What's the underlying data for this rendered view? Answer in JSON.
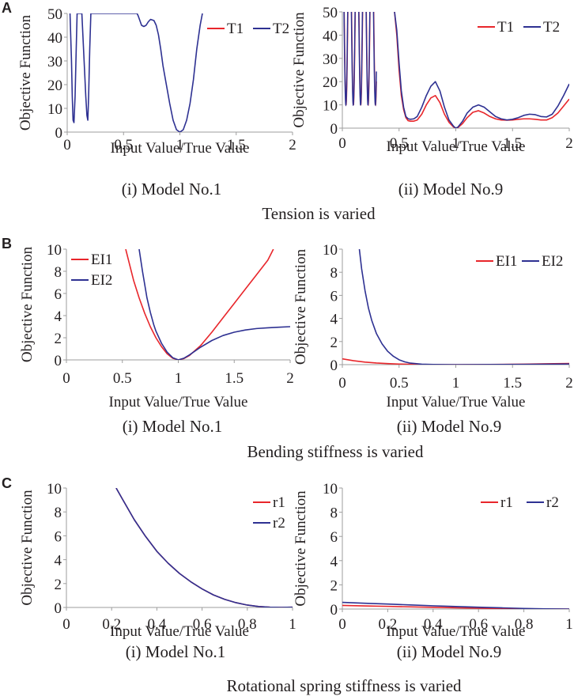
{
  "colors": {
    "red": "#e8262b",
    "blue": "#2e3192",
    "axis": "#9e9e9e",
    "text": "#231f20"
  },
  "panels": [
    {
      "letter": "A",
      "caption": "Tension is varied",
      "subcaptions": [
        "(i) Model No.1",
        "(ii) Model No.9"
      ]
    },
    {
      "letter": "B",
      "caption": "Bending stiffness is varied",
      "subcaptions": [
        "(i) Model No.1",
        "(ii) Model No.9"
      ]
    },
    {
      "letter": "C",
      "caption": "Rotational spring stiffness is varied",
      "subcaptions": [
        "(i) Model No.1",
        "(ii) Model No.9"
      ]
    }
  ],
  "chart_data": [
    {
      "id": "A-i",
      "type": "line",
      "title": "(i) Model No.1",
      "xlabel": "Input Value/True Value",
      "ylabel": "Objective Function",
      "xlim": [
        0,
        2
      ],
      "ylim": [
        0,
        50
      ],
      "xticks": [
        "0",
        "0.5",
        "1",
        "1.5",
        "2"
      ],
      "yticks": [
        "0",
        "10",
        "20",
        "30",
        "40",
        "50"
      ],
      "legend": "top-right",
      "series": [
        {
          "name": "T1",
          "color": "red",
          "x": [],
          "y": []
        },
        {
          "name": "T2",
          "color": "blue",
          "x": [
            0.025,
            0.038,
            0.045,
            0.052,
            0.06,
            0.07,
            0.08,
            0.088,
            0.13,
            0.15,
            0.165,
            0.175,
            0.183,
            0.19,
            0.2,
            0.21,
            0.62,
            0.63,
            0.66,
            0.68,
            0.7,
            0.72,
            0.74,
            0.77,
            0.79,
            0.81,
            0.83,
            0.85,
            0.88,
            0.91,
            0.94,
            0.97,
            1.0,
            1.03,
            1.06,
            1.09,
            1.12,
            1.15,
            1.18,
            1.2
          ],
          "y": [
            50,
            30,
            15,
            5,
            4,
            15,
            35,
            50,
            50,
            30,
            15,
            7,
            5,
            15,
            35,
            50,
            50,
            49,
            45,
            44.5,
            45,
            46.5,
            47.5,
            47,
            45,
            41,
            35,
            28,
            20,
            12,
            5,
            1,
            0,
            1,
            5,
            12,
            22,
            35,
            45,
            50
          ]
        }
      ]
    },
    {
      "id": "A-ii",
      "type": "line",
      "title": "(ii) Model No.9",
      "xlabel": "Input Value/True Value",
      "ylabel": "Objective Function",
      "xlim": [
        0,
        2
      ],
      "ylim": [
        0,
        50
      ],
      "xticks": [
        "0",
        "0.5",
        "1",
        "1.5",
        "2"
      ],
      "yticks": [
        "0",
        "10",
        "20",
        "30",
        "40",
        "50"
      ],
      "legend": "top-right",
      "series": [
        {
          "name": "T1",
          "color": "red",
          "x": [
            0.46,
            0.48,
            0.5,
            0.52,
            0.54,
            0.56,
            0.58,
            0.6,
            0.63,
            0.66,
            0.7,
            0.74,
            0.78,
            0.82,
            0.86,
            0.9,
            0.94,
            0.98,
            1.0,
            1.02,
            1.06,
            1.1,
            1.15,
            1.2,
            1.25,
            1.3,
            1.35,
            1.4,
            1.45,
            1.5,
            1.55,
            1.6,
            1.65,
            1.7,
            1.75,
            1.8,
            1.85,
            1.9,
            1.95,
            2.0
          ],
          "y": [
            50,
            40,
            25,
            14,
            8,
            4.5,
            3.2,
            3,
            3,
            3.5,
            6,
            10,
            13,
            14,
            11,
            6,
            2.5,
            0.5,
            0,
            0.3,
            2,
            4.5,
            6.8,
            7.5,
            6.5,
            5,
            4,
            3.5,
            3.4,
            3.5,
            3.8,
            4,
            4,
            3.8,
            3.5,
            3.5,
            4.5,
            6.5,
            9.5,
            12.5
          ]
        },
        {
          "name": "T2",
          "color": "blue",
          "x": [
            0.46,
            0.48,
            0.5,
            0.52,
            0.54,
            0.56,
            0.58,
            0.6,
            0.63,
            0.66,
            0.7,
            0.74,
            0.78,
            0.82,
            0.86,
            0.9,
            0.94,
            0.98,
            1.0,
            1.02,
            1.06,
            1.1,
            1.15,
            1.2,
            1.25,
            1.3,
            1.35,
            1.4,
            1.45,
            1.5,
            1.55,
            1.6,
            1.65,
            1.7,
            1.75,
            1.8,
            1.85,
            1.9,
            1.95,
            2.0
          ],
          "y": [
            50,
            42,
            28,
            16,
            9,
            5,
            4,
            3.8,
            4,
            5,
            9,
            14,
            18,
            20,
            16,
            9,
            3.5,
            0.8,
            0,
            0.5,
            3,
            6.5,
            9,
            10,
            9,
            7,
            5,
            4,
            3.5,
            3.8,
            4.5,
            5.5,
            6,
            5.8,
            5,
            4.8,
            6,
            9.5,
            14,
            19
          ]
        }
      ],
      "note": "Dense oscillations near x = 0 to 0.3 exceed the axis range"
    },
    {
      "id": "B-i",
      "type": "line",
      "title": "(i) Model No.1",
      "xlabel": "Input Value/True Value",
      "ylabel": "Objective Function",
      "xlim": [
        0,
        2
      ],
      "ylim": [
        0,
        10
      ],
      "xticks": [
        "0",
        "0.5",
        "1",
        "1.5",
        "2"
      ],
      "yticks": [
        "0",
        "2",
        "4",
        "6",
        "8",
        "10"
      ],
      "legend": "top-left",
      "series": [
        {
          "name": "EI1",
          "color": "red",
          "x": [
            0.53,
            0.56,
            0.6,
            0.65,
            0.7,
            0.75,
            0.8,
            0.85,
            0.9,
            0.95,
            1.0,
            1.05,
            1.1,
            1.2,
            1.3,
            1.4,
            1.5,
            1.6,
            1.7,
            1.8,
            1.85
          ],
          "y": [
            10,
            8.8,
            7.2,
            5.6,
            4.2,
            3.0,
            2.0,
            1.2,
            0.55,
            0.15,
            0,
            0.12,
            0.4,
            1.3,
            2.5,
            3.8,
            5.1,
            6.4,
            7.7,
            9.0,
            10
          ]
        },
        {
          "name": "EI2",
          "color": "blue",
          "x": [
            0.65,
            0.68,
            0.7,
            0.72,
            0.75,
            0.78,
            0.8,
            0.85,
            0.9,
            0.95,
            1.0,
            1.05,
            1.1,
            1.2,
            1.3,
            1.4,
            1.5,
            1.6,
            1.7,
            1.8,
            1.9,
            2.0
          ],
          "y": [
            10,
            8.0,
            6.8,
            5.6,
            4.3,
            3.2,
            2.6,
            1.5,
            0.7,
            0.2,
            0,
            0.15,
            0.45,
            1.15,
            1.75,
            2.2,
            2.5,
            2.7,
            2.83,
            2.9,
            2.95,
            3.0
          ]
        }
      ]
    },
    {
      "id": "B-ii",
      "type": "line",
      "title": "(ii) Model No.9",
      "xlabel": "Input Value/True Value",
      "ylabel": "Objective Function",
      "xlim": [
        0,
        2
      ],
      "ylim": [
        0,
        10
      ],
      "xticks": [
        "0",
        "0.5",
        "1",
        "1.5",
        "2"
      ],
      "yticks": [
        "0",
        "2",
        "4",
        "6",
        "8",
        "10"
      ],
      "legend": "top-right",
      "series": [
        {
          "name": "EI1",
          "color": "red",
          "x": [
            0.0,
            0.1,
            0.2,
            0.3,
            0.4,
            0.5,
            0.6,
            0.7,
            0.8,
            0.9,
            1.0,
            1.2,
            1.4,
            1.6,
            1.8,
            2.0
          ],
          "y": [
            0.5,
            0.34,
            0.22,
            0.14,
            0.09,
            0.05,
            0.03,
            0.015,
            0.005,
            0.001,
            0,
            0.005,
            0.02,
            0.04,
            0.07,
            0.1
          ]
        },
        {
          "name": "EI2",
          "color": "blue",
          "x": [
            0.15,
            0.17,
            0.2,
            0.23,
            0.26,
            0.3,
            0.35,
            0.4,
            0.45,
            0.5,
            0.55,
            0.6,
            0.7,
            0.8,
            0.9,
            1.0,
            1.2,
            1.4,
            1.6,
            1.8,
            2.0
          ],
          "y": [
            10,
            8.3,
            6.4,
            4.9,
            3.8,
            2.7,
            1.8,
            1.15,
            0.72,
            0.42,
            0.24,
            0.13,
            0.04,
            0.01,
            0.002,
            0,
            0.004,
            0.012,
            0.025,
            0.04,
            0.06
          ]
        }
      ]
    },
    {
      "id": "C-i",
      "type": "line",
      "title": "(i) Model No.1",
      "xlabel": "Input Value/True Value",
      "ylabel": "Objective Function",
      "xlim": [
        0,
        1
      ],
      "ylim": [
        0,
        10
      ],
      "xticks": [
        "0",
        "0.2",
        "0.4",
        "0.6",
        "0.8",
        "1"
      ],
      "yticks": [
        "0",
        "2",
        "4",
        "6",
        "8",
        "10"
      ],
      "legend": "top-right",
      "series": [
        {
          "name": "r1",
          "color": "red",
          "x": [
            0.22,
            0.25,
            0.3,
            0.35,
            0.4,
            0.45,
            0.5,
            0.55,
            0.6,
            0.65,
            0.7,
            0.75,
            0.8,
            0.85,
            0.9,
            0.95,
            1.0
          ],
          "y": [
            10,
            9.0,
            7.35,
            5.95,
            4.7,
            3.7,
            2.85,
            2.15,
            1.55,
            1.05,
            0.68,
            0.4,
            0.2,
            0.08,
            0.02,
            0.005,
            0.02
          ]
        },
        {
          "name": "r2",
          "color": "blue",
          "x": [
            0.22,
            0.25,
            0.3,
            0.35,
            0.4,
            0.45,
            0.5,
            0.55,
            0.6,
            0.65,
            0.7,
            0.75,
            0.8,
            0.85,
            0.9,
            0.95,
            1.0
          ],
          "y": [
            10,
            9.0,
            7.35,
            5.95,
            4.7,
            3.7,
            2.85,
            2.15,
            1.55,
            1.05,
            0.68,
            0.4,
            0.2,
            0.08,
            0.02,
            0.005,
            0.02
          ]
        }
      ]
    },
    {
      "id": "C-ii",
      "type": "line",
      "title": "(ii) Model No.9",
      "xlabel": "Input Value/True Value",
      "ylabel": "Objective Function",
      "xlim": [
        0,
        1
      ],
      "ylim": [
        0,
        10
      ],
      "xticks": [
        "0",
        "0.2",
        "0.4",
        "0.6",
        "0.8",
        "1"
      ],
      "yticks": [
        "0",
        "2",
        "4",
        "6",
        "8",
        "10"
      ],
      "legend": "top-right",
      "series": [
        {
          "name": "r1",
          "color": "red",
          "x": [
            0.0,
            0.1,
            0.2,
            0.3,
            0.4,
            0.5,
            0.6,
            0.7,
            0.8,
            0.9,
            1.0
          ],
          "y": [
            0.3,
            0.26,
            0.22,
            0.18,
            0.14,
            0.1,
            0.07,
            0.04,
            0.02,
            0.005,
            0
          ]
        },
        {
          "name": "r2",
          "color": "blue",
          "x": [
            0.0,
            0.1,
            0.2,
            0.3,
            0.4,
            0.5,
            0.6,
            0.7,
            0.8,
            0.9,
            1.0
          ],
          "y": [
            0.55,
            0.48,
            0.41,
            0.34,
            0.27,
            0.21,
            0.15,
            0.1,
            0.05,
            0.015,
            0
          ]
        }
      ]
    }
  ]
}
